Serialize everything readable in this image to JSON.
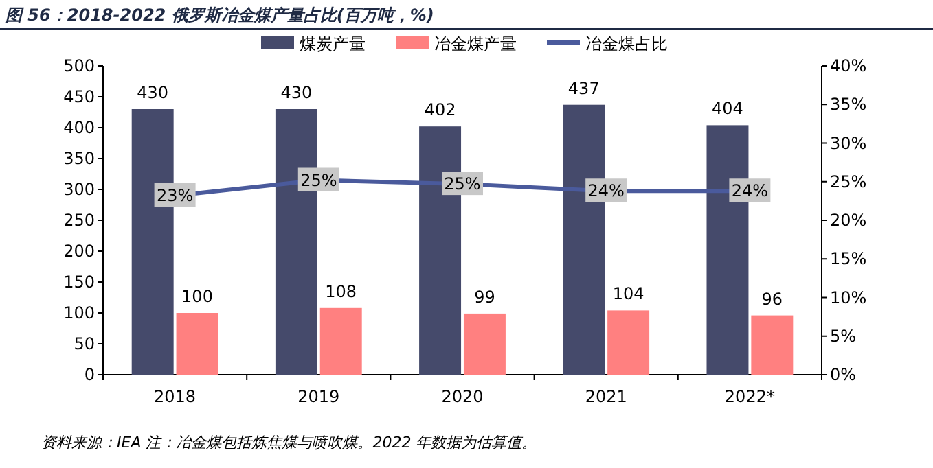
{
  "chart_data": {
    "type": "bar",
    "title": "图 56：2018-2022 俄罗斯冶金煤产量占比(百万吨，%)",
    "categories": [
      "2018",
      "2019",
      "2020",
      "2021",
      "2022*"
    ],
    "series": [
      {
        "name": "煤炭产量",
        "color": "#454a6b",
        "values": [
          430,
          430,
          402,
          437,
          404
        ]
      },
      {
        "name": "冶金煤产量",
        "color": "#ff8080",
        "values": [
          100,
          108,
          99,
          104,
          96
        ]
      },
      {
        "name": "冶金煤占比",
        "color": "#4a5a9c",
        "type": "line",
        "axis": "y2",
        "marker": "square",
        "values": [
          23.2,
          25.2,
          24.7,
          23.8,
          23.8
        ],
        "value_labels": [
          "23%",
          "25%",
          "25%",
          "24%",
          "24%"
        ]
      }
    ],
    "ylim": [
      0,
      500
    ],
    "yticks": [
      0,
      50,
      100,
      150,
      200,
      250,
      300,
      350,
      400,
      450,
      500
    ],
    "y2lim": [
      0,
      40
    ],
    "y2ticks": [
      {
        "value": 0,
        "label": "0%"
      },
      {
        "value": 5,
        "label": "5%"
      },
      {
        "value": 10,
        "label": "10%"
      },
      {
        "value": 15,
        "label": "15%"
      },
      {
        "value": 20,
        "label": "20%"
      },
      {
        "value": 25,
        "label": "25%"
      },
      {
        "value": 30,
        "label": "30%"
      },
      {
        "value": 35,
        "label": "35%"
      },
      {
        "value": 40,
        "label": "40%"
      }
    ],
    "data_labels": true,
    "legend": "top",
    "grid": false,
    "annotations": [
      "资料来源：IEA    注：冶金煤包括炼焦煤与喷吹煤。2022 年数据为估算值。"
    ]
  }
}
